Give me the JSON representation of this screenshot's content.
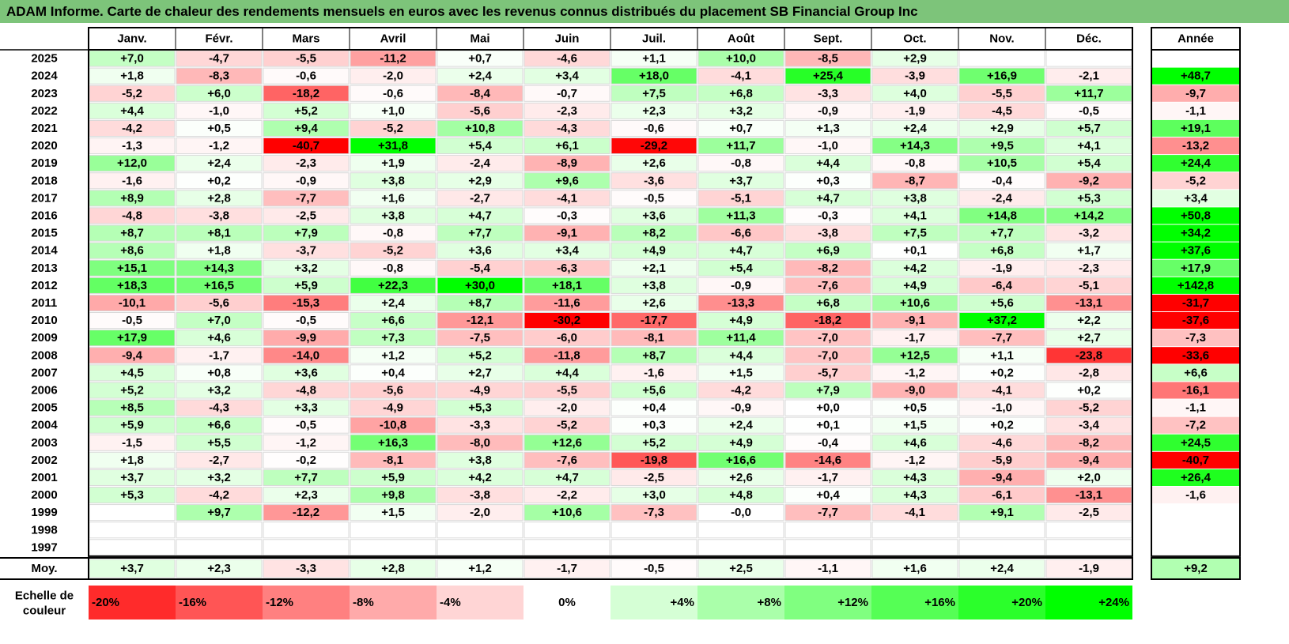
{
  "title": "ADAM Informe. Carte de chaleur des rendements mensuels en euros avec les revenus connus distribués du placement SB Financial Group Inc",
  "chart_data": {
    "type": "heatmap",
    "title": "ADAM Informe. Carte de chaleur des rendements mensuels en euros avec les revenus connus distribués du placement SB Financial Group Inc",
    "columns": [
      "Janv.",
      "Févr.",
      "Mars",
      "Avril",
      "Mai",
      "Juin",
      "Juil.",
      "Août",
      "Sept.",
      "Oct.",
      "Nov.",
      "Déc."
    ],
    "year_header": "Année",
    "rows": [
      {
        "year": "2025",
        "values": [
          "+7,0",
          "-4,7",
          "-5,5",
          "-11,2",
          "+0,7",
          "-4,6",
          "+1,1",
          "+10,0",
          "-8,5",
          "+2,9",
          "",
          ""
        ],
        "annual": ""
      },
      {
        "year": "2024",
        "values": [
          "+1,8",
          "-8,3",
          "-0,6",
          "-2,0",
          "+2,4",
          "+3,4",
          "+18,0",
          "-4,1",
          "+25,4",
          "-3,9",
          "+16,9",
          "-2,1"
        ],
        "annual": "+48,7"
      },
      {
        "year": "2023",
        "values": [
          "-5,2",
          "+6,0",
          "-18,2",
          "-0,6",
          "-8,4",
          "-0,7",
          "+7,5",
          "+6,8",
          "-3,3",
          "+4,0",
          "-5,5",
          "+11,7"
        ],
        "annual": "-9,7"
      },
      {
        "year": "2022",
        "values": [
          "+4,4",
          "-1,0",
          "+5,2",
          "+1,0",
          "-5,6",
          "-2,3",
          "+2,3",
          "+3,2",
          "-0,9",
          "-1,9",
          "-4,5",
          "-0,5"
        ],
        "annual": "-1,1"
      },
      {
        "year": "2021",
        "values": [
          "-4,2",
          "+0,5",
          "+9,4",
          "-5,2",
          "+10,8",
          "-4,3",
          "-0,6",
          "+0,7",
          "+1,3",
          "+2,4",
          "+2,9",
          "+5,7"
        ],
        "annual": "+19,1"
      },
      {
        "year": "2020",
        "values": [
          "-1,3",
          "-1,2",
          "-40,7",
          "+31,8",
          "+5,4",
          "+6,1",
          "-29,2",
          "+11,7",
          "-1,0",
          "+14,3",
          "+9,5",
          "+4,1"
        ],
        "annual": "-13,2"
      },
      {
        "year": "2019",
        "values": [
          "+12,0",
          "+2,4",
          "-2,3",
          "+1,9",
          "-2,4",
          "-8,9",
          "+2,6",
          "-0,8",
          "+4,4",
          "-0,8",
          "+10,5",
          "+5,4"
        ],
        "annual": "+24,4"
      },
      {
        "year": "2018",
        "values": [
          "-1,6",
          "+0,2",
          "-0,9",
          "+3,8",
          "+2,9",
          "+9,6",
          "-3,6",
          "+3,7",
          "+0,3",
          "-8,7",
          "-0,4",
          "-9,2"
        ],
        "annual": "-5,2"
      },
      {
        "year": "2017",
        "values": [
          "+8,9",
          "+2,8",
          "-7,7",
          "+1,6",
          "-2,7",
          "-4,1",
          "-0,5",
          "-5,1",
          "+4,7",
          "+3,8",
          "-2,4",
          "+5,3"
        ],
        "annual": "+3,4"
      },
      {
        "year": "2016",
        "values": [
          "-4,8",
          "-3,8",
          "-2,5",
          "+3,8",
          "+4,7",
          "-0,3",
          "+3,6",
          "+11,3",
          "-0,3",
          "+4,1",
          "+14,8",
          "+14,2"
        ],
        "annual": "+50,8"
      },
      {
        "year": "2015",
        "values": [
          "+8,7",
          "+8,1",
          "+7,9",
          "-0,8",
          "+7,7",
          "-9,1",
          "+8,2",
          "-6,6",
          "-3,8",
          "+7,5",
          "+7,7",
          "-3,2"
        ],
        "annual": "+34,2"
      },
      {
        "year": "2014",
        "values": [
          "+8,6",
          "+1,8",
          "-3,7",
          "-5,2",
          "+3,6",
          "+3,4",
          "+4,9",
          "+4,7",
          "+6,9",
          "+0,1",
          "+6,8",
          "+1,7"
        ],
        "annual": "+37,6"
      },
      {
        "year": "2013",
        "values": [
          "+15,1",
          "+14,3",
          "+3,2",
          "-0,8",
          "-5,4",
          "-6,3",
          "+2,1",
          "+5,4",
          "-8,2",
          "+4,2",
          "-1,9",
          "-2,3"
        ],
        "annual": "+17,9"
      },
      {
        "year": "2012",
        "values": [
          "+18,3",
          "+16,5",
          "+5,9",
          "+22,3",
          "+30,0",
          "+18,1",
          "+3,8",
          "-0,9",
          "-7,6",
          "+4,9",
          "-6,4",
          "-5,1"
        ],
        "annual": "+142,8"
      },
      {
        "year": "2011",
        "values": [
          "-10,1",
          "-5,6",
          "-15,3",
          "+2,4",
          "+8,7",
          "-11,6",
          "+2,6",
          "-13,3",
          "+6,8",
          "+10,6",
          "+5,6",
          "-13,1"
        ],
        "annual": "-31,7"
      },
      {
        "year": "2010",
        "values": [
          "-0,5",
          "+7,0",
          "-0,5",
          "+6,6",
          "-12,1",
          "-30,2",
          "-17,7",
          "+4,9",
          "-18,2",
          "-9,1",
          "+37,2",
          "+2,2"
        ],
        "annual": "-37,6"
      },
      {
        "year": "2009",
        "values": [
          "+17,9",
          "+4,6",
          "-9,9",
          "+7,3",
          "-7,5",
          "-6,0",
          "-8,1",
          "+11,4",
          "-7,0",
          "-1,7",
          "-7,7",
          "+2,7"
        ],
        "annual": "-7,3"
      },
      {
        "year": "2008",
        "values": [
          "-9,4",
          "-1,7",
          "-14,0",
          "+1,2",
          "+5,2",
          "-11,8",
          "+8,7",
          "+4,4",
          "-7,0",
          "+12,5",
          "+1,1",
          "-23,8"
        ],
        "annual": "-33,6"
      },
      {
        "year": "2007",
        "values": [
          "+4,5",
          "+0,8",
          "+3,6",
          "+0,4",
          "+2,7",
          "+4,4",
          "-1,6",
          "+1,5",
          "-5,7",
          "-1,2",
          "+0,2",
          "-2,8"
        ],
        "annual": "+6,6"
      },
      {
        "year": "2006",
        "values": [
          "+5,2",
          "+3,2",
          "-4,8",
          "-5,6",
          "-4,9",
          "-5,5",
          "+5,6",
          "-4,2",
          "+7,9",
          "-9,0",
          "-4,1",
          "+0,2"
        ],
        "annual": "-16,1"
      },
      {
        "year": "2005",
        "values": [
          "+8,5",
          "-4,3",
          "+3,3",
          "-4,9",
          "+5,3",
          "-2,0",
          "+0,4",
          "-0,9",
          "+0,0",
          "+0,5",
          "-1,0",
          "-5,2"
        ],
        "annual": "-1,1"
      },
      {
        "year": "2004",
        "values": [
          "+5,9",
          "+6,6",
          "-0,5",
          "-10,8",
          "-3,3",
          "-5,2",
          "+0,3",
          "+2,4",
          "+0,1",
          "+1,5",
          "+0,2",
          "-3,4"
        ],
        "annual": "-7,2"
      },
      {
        "year": "2003",
        "values": [
          "-1,5",
          "+5,5",
          "-1,2",
          "+16,3",
          "-8,0",
          "+12,6",
          "+5,2",
          "+4,9",
          "-0,4",
          "+4,6",
          "-4,6",
          "-8,2"
        ],
        "annual": "+24,5"
      },
      {
        "year": "2002",
        "values": [
          "+1,8",
          "-2,7",
          "-0,2",
          "-8,1",
          "+3,8",
          "-7,6",
          "-19,8",
          "+16,6",
          "-14,6",
          "-1,2",
          "-5,9",
          "-9,4"
        ],
        "annual": "-40,7"
      },
      {
        "year": "2001",
        "values": [
          "+3,7",
          "+3,2",
          "+7,7",
          "+5,9",
          "+4,2",
          "+4,7",
          "-2,5",
          "+2,6",
          "-1,7",
          "+4,3",
          "-9,4",
          "+2,0"
        ],
        "annual": "+26,4"
      },
      {
        "year": "2000",
        "values": [
          "+5,3",
          "-4,2",
          "+2,3",
          "+9,8",
          "-3,8",
          "-2,2",
          "+3,0",
          "+4,8",
          "+0,4",
          "+4,3",
          "-6,1",
          "-13,1"
        ],
        "annual": "-1,6"
      },
      {
        "year": "1999",
        "values": [
          "",
          "+9,7",
          "-12,2",
          "+1,5",
          "-2,0",
          "+10,6",
          "-7,3",
          "-0,0",
          "-7,7",
          "-4,1",
          "+9,1",
          "-2,5"
        ],
        "annual": ""
      },
      {
        "year": "1998",
        "values": [
          "",
          "",
          "",
          "",
          "",
          "",
          "",
          "",
          "",
          "",
          "",
          ""
        ],
        "annual": ""
      },
      {
        "year": "1997",
        "values": [
          "",
          "",
          "",
          "",
          "",
          "",
          "",
          "",
          "",
          "",
          "",
          ""
        ],
        "annual": ""
      }
    ],
    "average": {
      "label": "Moy.",
      "values": [
        "+3,7",
        "+2,3",
        "-3,3",
        "+2,8",
        "+1,2",
        "-1,7",
        "-0,5",
        "+2,5",
        "-1,1",
        "+1,6",
        "+2,4",
        "-1,9"
      ],
      "annual": "+9,2"
    },
    "scale": {
      "label_line1": "Echelle de",
      "label_line2": "couleur",
      "steps": [
        "-20%",
        "-16%",
        "-12%",
        "-8%",
        "-4%",
        "0%",
        "+4%",
        "+8%",
        "+12%",
        "+16%",
        "+20%",
        "+24%"
      ]
    }
  }
}
